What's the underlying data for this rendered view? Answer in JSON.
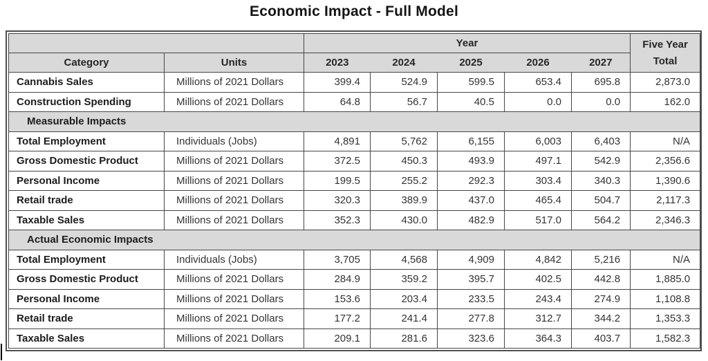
{
  "page": {
    "title": "Economic Impact - Full Model"
  },
  "colors": {
    "header_fill": "#d9d9d9",
    "grid_border": "#454545",
    "outer_border": "#4f4f4f",
    "label_text": "#1c1c1c",
    "value_text": "#333333"
  },
  "table": {
    "header": {
      "category_label": "Category",
      "units_label": "Units",
      "year_group_label": "Year",
      "year_labels": [
        "2023",
        "2024",
        "2025",
        "2026",
        "2027"
      ],
      "five_year_total_label": "Five Year Total"
    },
    "rows": [
      {
        "type": "data",
        "category": "Cannabis Sales",
        "units": "Millions of 2021 Dollars",
        "values": [
          "399.4",
          "524.9",
          "599.5",
          "653.4",
          "695.8",
          "2,873.0"
        ]
      },
      {
        "type": "data",
        "category": "Construction Spending",
        "units": "Millions of 2021 Dollars",
        "values": [
          "64.8",
          "56.7",
          "40.5",
          "0.0",
          "0.0",
          "162.0"
        ]
      },
      {
        "type": "section",
        "label": "Measurable Impacts"
      },
      {
        "type": "data",
        "category": "Total Employment",
        "units": "Individuals (Jobs)",
        "values": [
          "4,891",
          "5,762",
          "6,155",
          "6,003",
          "6,403",
          "N/A"
        ]
      },
      {
        "type": "data",
        "category": "Gross Domestic Product",
        "units": "Millions of 2021 Dollars",
        "values": [
          "372.5",
          "450.3",
          "493.9",
          "497.1",
          "542.9",
          "2,356.6"
        ]
      },
      {
        "type": "data",
        "category": "Personal Income",
        "units": "Millions of 2021 Dollars",
        "values": [
          "199.5",
          "255.2",
          "292.3",
          "303.4",
          "340.3",
          "1,390.6"
        ]
      },
      {
        "type": "data",
        "category": "Retail trade",
        "units": "Millions of 2021 Dollars",
        "values": [
          "320.3",
          "389.9",
          "437.0",
          "465.4",
          "504.7",
          "2,117.3"
        ]
      },
      {
        "type": "data",
        "category": "Taxable Sales",
        "units": "Millions of 2021 Dollars",
        "values": [
          "352.3",
          "430.0",
          "482.9",
          "517.0",
          "564.2",
          "2,346.3"
        ]
      },
      {
        "type": "section",
        "label": "Actual Economic Impacts"
      },
      {
        "type": "data",
        "category": "Total Employment",
        "units": "Individuals (Jobs)",
        "values": [
          "3,705",
          "4,568",
          "4,909",
          "4,842",
          "5,216",
          "N/A"
        ]
      },
      {
        "type": "data",
        "category": "Gross Domestic Product",
        "units": "Millions of 2021 Dollars",
        "values": [
          "284.9",
          "359.2",
          "395.7",
          "402.5",
          "442.8",
          "1,885.0"
        ]
      },
      {
        "type": "data",
        "category": "Personal Income",
        "units": "Millions of 2021 Dollars",
        "values": [
          "153.6",
          "203.4",
          "233.5",
          "243.4",
          "274.9",
          "1,108.8"
        ]
      },
      {
        "type": "data",
        "category": "Retail trade",
        "units": "Millions of 2021 Dollars",
        "values": [
          "177.2",
          "241.4",
          "277.8",
          "312.7",
          "344.2",
          "1,353.3"
        ]
      },
      {
        "type": "data",
        "category": "Taxable Sales",
        "units": "Millions of 2021 Dollars",
        "values": [
          "209.1",
          "281.6",
          "323.6",
          "364.3",
          "403.7",
          "1,582.3"
        ]
      }
    ]
  }
}
